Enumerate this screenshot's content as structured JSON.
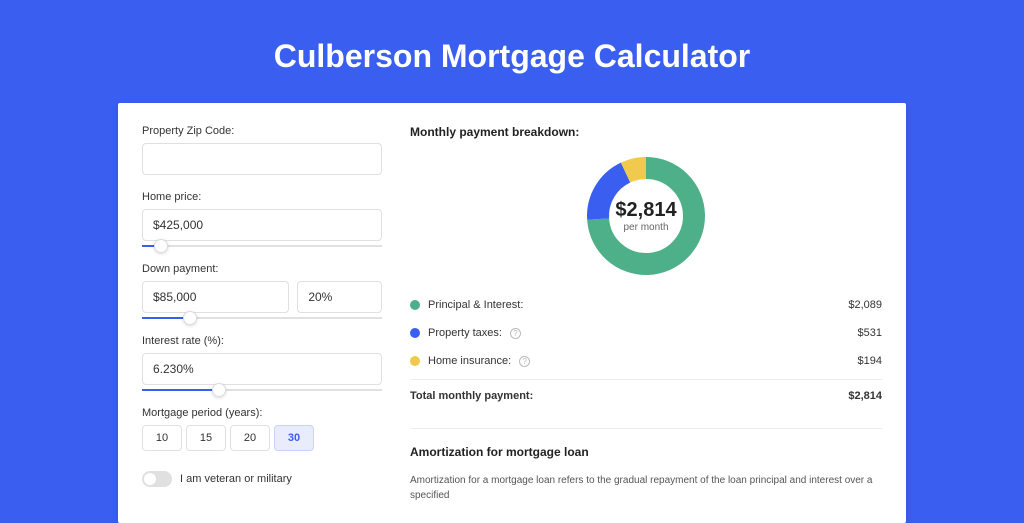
{
  "page": {
    "title": "Culberson Mortgage Calculator",
    "background_color": "#3a5ef0",
    "card_background": "#ffffff"
  },
  "form": {
    "zip": {
      "label": "Property Zip Code:",
      "value": ""
    },
    "home_price": {
      "label": "Home price:",
      "value": "$425,000",
      "slider_percent": 8
    },
    "down_payment": {
      "label": "Down payment:",
      "amount": "$85,000",
      "percent": "20%",
      "slider_percent": 20
    },
    "interest_rate": {
      "label": "Interest rate (%):",
      "value": "6.230%",
      "slider_percent": 32
    },
    "mortgage_period": {
      "label": "Mortgage period (years):",
      "options": [
        "10",
        "15",
        "20",
        "30"
      ],
      "selected": "30"
    },
    "veteran": {
      "label": "I am veteran or military",
      "checked": false
    }
  },
  "breakdown": {
    "title": "Monthly payment breakdown:",
    "donut": {
      "amount": "$2,814",
      "sub": "per month",
      "segments": [
        {
          "label": "Principal & Interest",
          "value": 2089,
          "color": "#4eb089",
          "percent": 74
        },
        {
          "label": "Property taxes",
          "value": 531,
          "color": "#3a5ef0",
          "percent": 19
        },
        {
          "label": "Home insurance",
          "value": 194,
          "color": "#f0c94e",
          "percent": 7
        }
      ],
      "stroke_width": 22,
      "radius": 48
    },
    "items": [
      {
        "label": "Principal & Interest:",
        "value": "$2,089",
        "color": "#4eb089",
        "info": false
      },
      {
        "label": "Property taxes:",
        "value": "$531",
        "color": "#3a5ef0",
        "info": true
      },
      {
        "label": "Home insurance:",
        "value": "$194",
        "color": "#f0c94e",
        "info": true
      }
    ],
    "total": {
      "label": "Total monthly payment:",
      "value": "$2,814"
    }
  },
  "amortization": {
    "title": "Amortization for mortgage loan",
    "text": "Amortization for a mortgage loan refers to the gradual repayment of the loan principal and interest over a specified"
  }
}
